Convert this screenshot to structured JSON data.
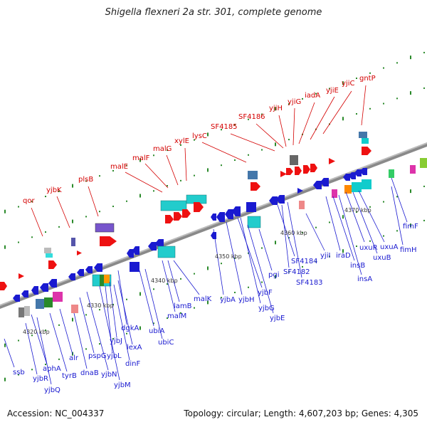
{
  "title": "Shigella flexneri 2a str. 301, complete genome",
  "footer": {
    "accession": "Accession: NC_004337",
    "topology": "Topology: circular; Length: 4,607,203 bp; Genes: 4,305"
  },
  "colors": {
    "top_label": "#d40000",
    "bottom_label": "#1a1ad0",
    "ruler": "#888888",
    "tick": "#2a8a2a"
  },
  "scale_labels": [
    "4320 kbp",
    "4330 kbp",
    "4340 kbp",
    "4350 kbp",
    "4360 kbp",
    "4370 kbp"
  ],
  "top_genes": [
    "qor",
    "yjbK",
    "plsB",
    "malE",
    "malF",
    "malG",
    "xylE",
    "lysC",
    "SF4185",
    "SF4186",
    "yjiH",
    "yjiG",
    "iadA",
    "yjiE",
    "yjiC",
    "gntP"
  ],
  "bottom_genes": [
    "ssb",
    "yjbR",
    "aphA",
    "yjbQ",
    "tyrB",
    "alr",
    "dnaB",
    "pspG",
    "yjbN",
    "yjbM",
    "yjbL",
    "yjbJ",
    "dinF",
    "lexA",
    "dgkA",
    "ubiA",
    "ubiC",
    "malM",
    "lamB",
    "malK",
    "yjbA",
    "yjbH",
    "yjbF",
    "yjbG",
    "yjbE",
    "pgi",
    "SF4184",
    "SF4182",
    "SF4183",
    "yjiI",
    "iraD",
    "insB",
    "insA",
    "uxuR",
    "uxuB",
    "uxuA",
    "fimF",
    "fimH"
  ]
}
